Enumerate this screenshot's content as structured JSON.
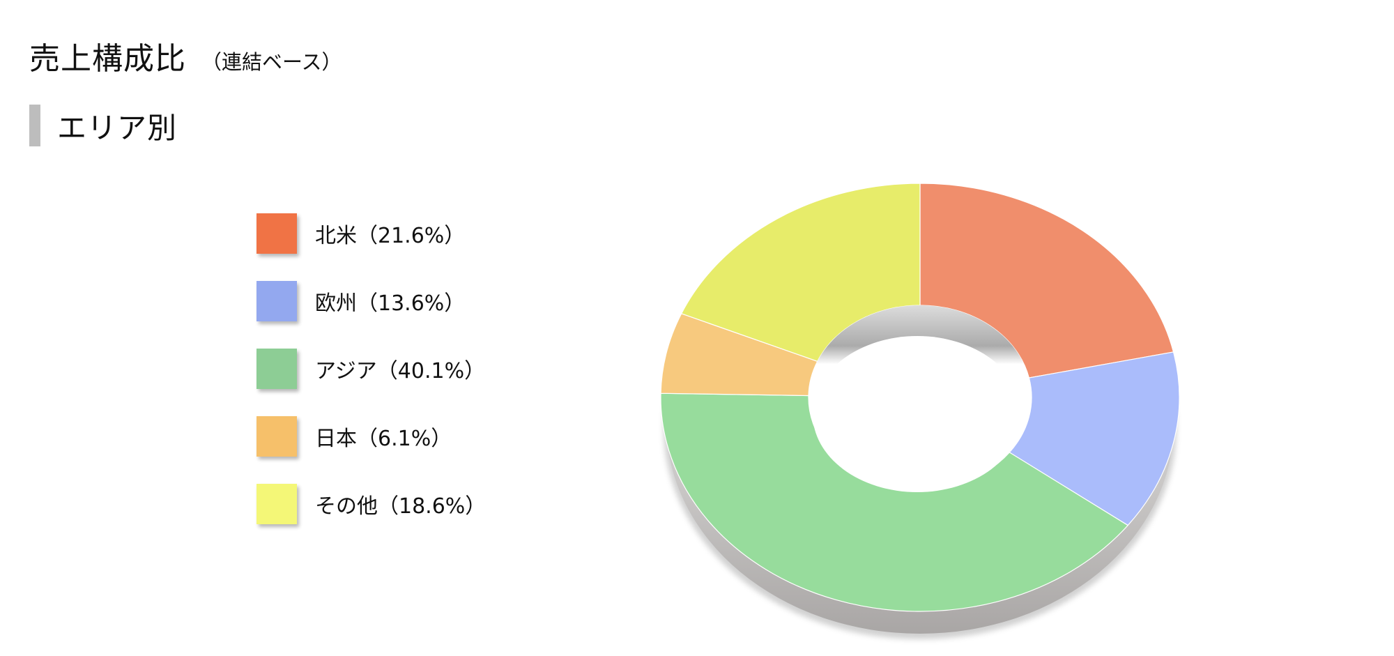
{
  "header": {
    "title": "売上構成比",
    "subtitle": "（連結ベース）"
  },
  "section": {
    "title": "エリア別"
  },
  "chart_data": {
    "type": "pie",
    "variant": "donut-3d",
    "categories": [
      "北米",
      "欧州",
      "アジア",
      "日本",
      "その他"
    ],
    "values": [
      21.6,
      13.6,
      40.1,
      6.1,
      18.6
    ],
    "unit": "%",
    "legend_labels": [
      "北米（21.6%）",
      "欧州（13.6%）",
      "アジア（40.1%）",
      "日本（6.1%）",
      "その他（18.6%）"
    ],
    "legend_colors": [
      "#f07345",
      "#93a8ef",
      "#8dcd95",
      "#f6c06a",
      "#f4f777"
    ],
    "slice_colors": [
      "#f08e6c",
      "#aabcfb",
      "#97dc9c",
      "#f7c97e",
      "#e7ec6a"
    ],
    "start_angle_deg": 0,
    "direction": "clockwise",
    "legend_position": "left",
    "title": "",
    "xlabel": "",
    "ylabel": ""
  }
}
